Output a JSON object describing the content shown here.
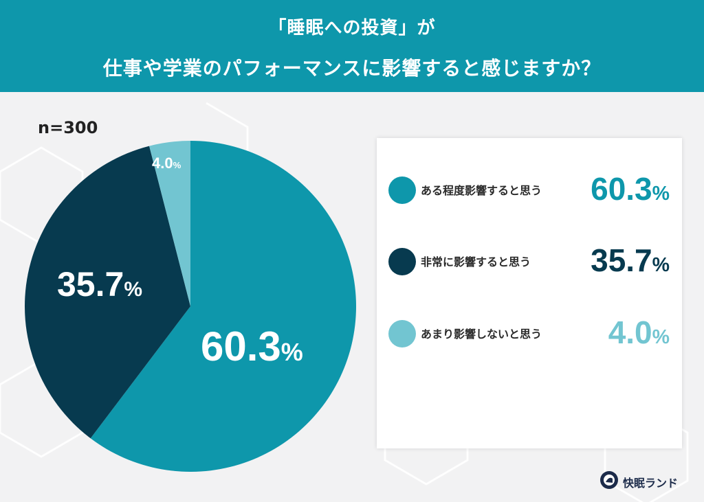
{
  "header": {
    "line1": "「睡眠への投資」が",
    "line2": "仕事や学業のパフォーマンスに影響すると感じますか？"
  },
  "sample_size": "n=300",
  "legend": [
    {
      "label": "ある程度影響すると思う",
      "value": "60.3",
      "unit": "%",
      "color": "#0e97ab"
    },
    {
      "label": "非常に影響すると思う",
      "value": "35.7",
      "unit": "%",
      "color": "#073a4f"
    },
    {
      "label": "あまり影響しないと思う",
      "value": "4.0",
      "unit": "%",
      "color": "#72c5d1"
    }
  ],
  "pie_labels": [
    {
      "value": "60.3",
      "unit": "%"
    },
    {
      "value": "35.7",
      "unit": "%"
    },
    {
      "value": "4.0",
      "unit": "%"
    }
  ],
  "brand": {
    "name": "快眠ランド"
  },
  "chart_data": {
    "type": "pie",
    "title": "「睡眠への投資」が仕事や学業のパフォーマンスに影響すると感じますか？",
    "subtitle": "n=300",
    "categories": [
      "ある程度影響すると思う",
      "非常に影響すると思う",
      "あまり影響しないと思う"
    ],
    "values": [
      60.3,
      35.7,
      4.0
    ],
    "colors": [
      "#0e97ab",
      "#073a4f",
      "#72c5d1"
    ],
    "unit": "%",
    "legend_position": "right"
  }
}
